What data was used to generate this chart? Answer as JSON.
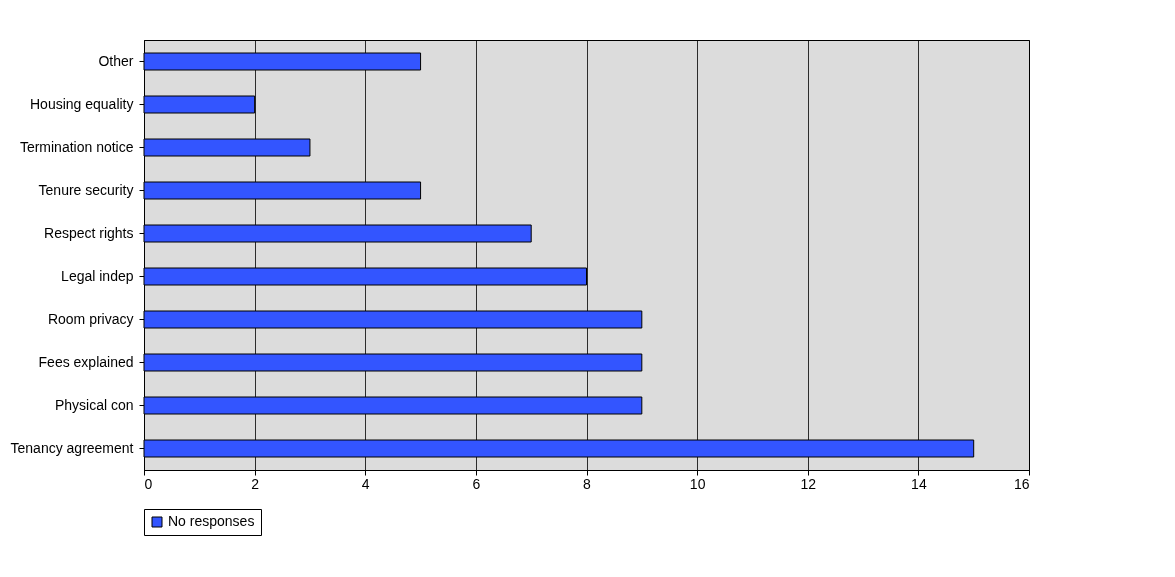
{
  "chart_data": {
    "type": "bar",
    "orientation": "horizontal",
    "categories": [
      "Other",
      "Housing equality",
      "Termination notice",
      "Tenure security",
      "Respect rights",
      "Legal indep",
      "Room privacy",
      "Fees explained",
      "Physical con",
      "Tenancy agreement"
    ],
    "series": [
      {
        "name": "No responses",
        "color": "#3355ff",
        "values": [
          5,
          2,
          3,
          5,
          7,
          8,
          9,
          9,
          9,
          15
        ]
      }
    ],
    "xlim": [
      0,
      16
    ],
    "xticks": [
      0,
      2,
      4,
      6,
      8,
      10,
      12,
      14,
      16
    ],
    "grid": "x",
    "legend": "bottom"
  }
}
